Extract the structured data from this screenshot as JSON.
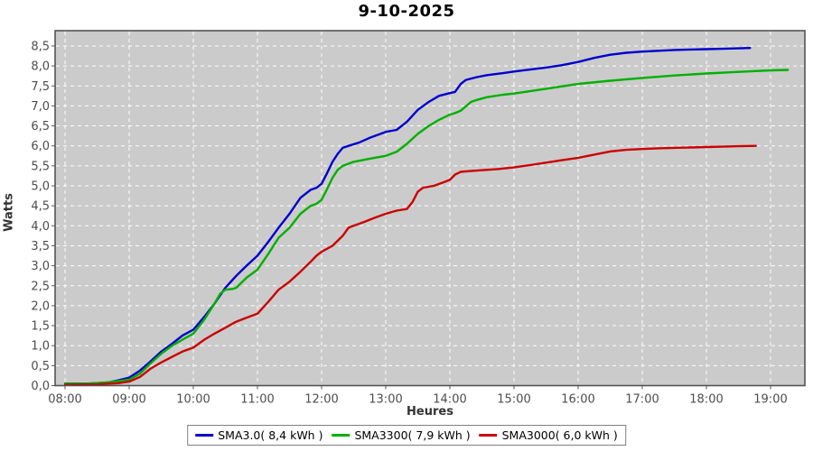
{
  "title": "9-10-2025",
  "axes": {
    "y_label": "Watts",
    "x_label": "Heures",
    "y_tick_values": [
      0,
      0.5,
      1,
      1.5,
      2,
      2.5,
      3,
      3.5,
      4,
      4.5,
      5,
      5.5,
      6,
      6.5,
      7,
      7.5,
      8,
      8.5
    ],
    "y_tick_labels": [
      "0,0",
      "0,5",
      "1,0",
      "1,5",
      "2,0",
      "2,5",
      "3,0",
      "3,5",
      "4,0",
      "4,5",
      "5,0",
      "5,5",
      "6,0",
      "6,5",
      "7,0",
      "7,5",
      "8,0",
      "8,5"
    ],
    "x_tick_values": [
      8,
      9,
      10,
      11,
      12,
      13,
      14,
      15,
      16,
      17,
      18,
      19
    ],
    "x_tick_labels": [
      "08:00",
      "09:00",
      "10:00",
      "11:00",
      "12:00",
      "13:00",
      "14:00",
      "15:00",
      "16:00",
      "17:00",
      "18:00",
      "19:00"
    ]
  },
  "legend": {
    "items": [
      {
        "label": "SMA3.0( 8,4 kWh )",
        "color": "#0000cc"
      },
      {
        "label": "SMA3300( 7,9 kWh )",
        "color": "#00b000"
      },
      {
        "label": "SMA3000( 6,0 kWh )",
        "color": "#cc0000"
      }
    ]
  },
  "chart_data": {
    "type": "line",
    "title": "9-10-2025",
    "xlabel": "Heures",
    "ylabel": "Watts",
    "x_unit": "hour of day (decimal)",
    "xlim": [
      7.85,
      19.55
    ],
    "ylim": [
      0,
      8.9
    ],
    "grid": true,
    "plot_background": "#cbcbcb",
    "grid_color": "#ffffff",
    "legend_position": "bottom-center",
    "series": [
      {
        "name": "SMA3.0( 8,4 kWh )",
        "total_kwh": "8,4",
        "color": "#0000cc",
        "points": [
          [
            8.0,
            0.05
          ],
          [
            8.17,
            0.05
          ],
          [
            8.33,
            0.05
          ],
          [
            8.5,
            0.06
          ],
          [
            8.67,
            0.08
          ],
          [
            8.83,
            0.13
          ],
          [
            9.0,
            0.2
          ],
          [
            9.17,
            0.38
          ],
          [
            9.33,
            0.6
          ],
          [
            9.5,
            0.85
          ],
          [
            9.67,
            1.05
          ],
          [
            9.83,
            1.25
          ],
          [
            10.0,
            1.4
          ],
          [
            10.17,
            1.72
          ],
          [
            10.33,
            2.05
          ],
          [
            10.5,
            2.45
          ],
          [
            10.67,
            2.75
          ],
          [
            10.83,
            3.0
          ],
          [
            11.0,
            3.25
          ],
          [
            11.17,
            3.6
          ],
          [
            11.33,
            3.95
          ],
          [
            11.5,
            4.3
          ],
          [
            11.67,
            4.7
          ],
          [
            11.83,
            4.9
          ],
          [
            11.92,
            4.95
          ],
          [
            12.0,
            5.05
          ],
          [
            12.08,
            5.3
          ],
          [
            12.17,
            5.6
          ],
          [
            12.25,
            5.8
          ],
          [
            12.33,
            5.95
          ],
          [
            12.42,
            6.0
          ],
          [
            12.58,
            6.08
          ],
          [
            12.75,
            6.2
          ],
          [
            12.92,
            6.3
          ],
          [
            13.0,
            6.35
          ],
          [
            13.17,
            6.4
          ],
          [
            13.33,
            6.6
          ],
          [
            13.5,
            6.9
          ],
          [
            13.67,
            7.1
          ],
          [
            13.83,
            7.25
          ],
          [
            14.0,
            7.32
          ],
          [
            14.08,
            7.35
          ],
          [
            14.17,
            7.55
          ],
          [
            14.25,
            7.65
          ],
          [
            14.42,
            7.72
          ],
          [
            14.58,
            7.77
          ],
          [
            14.83,
            7.82
          ],
          [
            15.0,
            7.86
          ],
          [
            15.25,
            7.91
          ],
          [
            15.5,
            7.96
          ],
          [
            15.75,
            8.02
          ],
          [
            16.0,
            8.1
          ],
          [
            16.25,
            8.2
          ],
          [
            16.5,
            8.28
          ],
          [
            16.75,
            8.33
          ],
          [
            17.0,
            8.36
          ],
          [
            17.25,
            8.38
          ],
          [
            17.5,
            8.4
          ],
          [
            17.75,
            8.41
          ],
          [
            18.0,
            8.42
          ],
          [
            18.25,
            8.43
          ],
          [
            18.5,
            8.44
          ],
          [
            18.68,
            8.45
          ]
        ]
      },
      {
        "name": "SMA3300( 7,9 kWh )",
        "total_kwh": "7,9",
        "color": "#00b000",
        "points": [
          [
            8.0,
            0.05
          ],
          [
            8.33,
            0.05
          ],
          [
            8.67,
            0.08
          ],
          [
            9.0,
            0.15
          ],
          [
            9.17,
            0.3
          ],
          [
            9.33,
            0.55
          ],
          [
            9.5,
            0.8
          ],
          [
            9.67,
            1.0
          ],
          [
            9.83,
            1.15
          ],
          [
            10.0,
            1.3
          ],
          [
            10.17,
            1.65
          ],
          [
            10.33,
            2.05
          ],
          [
            10.42,
            2.3
          ],
          [
            10.5,
            2.4
          ],
          [
            10.62,
            2.42
          ],
          [
            10.67,
            2.45
          ],
          [
            10.83,
            2.7
          ],
          [
            11.0,
            2.9
          ],
          [
            11.17,
            3.3
          ],
          [
            11.33,
            3.7
          ],
          [
            11.5,
            3.95
          ],
          [
            11.67,
            4.3
          ],
          [
            11.83,
            4.5
          ],
          [
            11.92,
            4.55
          ],
          [
            12.0,
            4.65
          ],
          [
            12.08,
            4.9
          ],
          [
            12.17,
            5.2
          ],
          [
            12.25,
            5.4
          ],
          [
            12.33,
            5.5
          ],
          [
            12.5,
            5.6
          ],
          [
            12.75,
            5.68
          ],
          [
            13.0,
            5.75
          ],
          [
            13.17,
            5.85
          ],
          [
            13.33,
            6.05
          ],
          [
            13.5,
            6.3
          ],
          [
            13.67,
            6.5
          ],
          [
            13.83,
            6.65
          ],
          [
            13.92,
            6.72
          ],
          [
            14.0,
            6.78
          ],
          [
            14.08,
            6.82
          ],
          [
            14.17,
            6.88
          ],
          [
            14.33,
            7.1
          ],
          [
            14.42,
            7.15
          ],
          [
            14.58,
            7.22
          ],
          [
            14.83,
            7.28
          ],
          [
            15.0,
            7.31
          ],
          [
            15.5,
            7.43
          ],
          [
            16.0,
            7.55
          ],
          [
            16.5,
            7.63
          ],
          [
            17.0,
            7.7
          ],
          [
            17.5,
            7.76
          ],
          [
            18.0,
            7.81
          ],
          [
            18.5,
            7.85
          ],
          [
            19.0,
            7.89
          ],
          [
            19.27,
            7.9
          ]
        ]
      },
      {
        "name": "SMA3000( 6,0 kWh )",
        "total_kwh": "6,0",
        "color": "#cc0000",
        "points": [
          [
            8.0,
            0.02
          ],
          [
            8.5,
            0.03
          ],
          [
            8.83,
            0.06
          ],
          [
            9.0,
            0.1
          ],
          [
            9.17,
            0.22
          ],
          [
            9.33,
            0.42
          ],
          [
            9.5,
            0.58
          ],
          [
            9.67,
            0.72
          ],
          [
            9.83,
            0.85
          ],
          [
            10.0,
            0.95
          ],
          [
            10.17,
            1.15
          ],
          [
            10.33,
            1.3
          ],
          [
            10.5,
            1.45
          ],
          [
            10.67,
            1.6
          ],
          [
            10.83,
            1.7
          ],
          [
            11.0,
            1.8
          ],
          [
            11.17,
            2.1
          ],
          [
            11.33,
            2.4
          ],
          [
            11.5,
            2.6
          ],
          [
            11.67,
            2.85
          ],
          [
            11.83,
            3.1
          ],
          [
            11.92,
            3.25
          ],
          [
            12.0,
            3.35
          ],
          [
            12.17,
            3.5
          ],
          [
            12.33,
            3.75
          ],
          [
            12.42,
            3.95
          ],
          [
            12.5,
            4.0
          ],
          [
            12.67,
            4.1
          ],
          [
            12.83,
            4.2
          ],
          [
            13.0,
            4.3
          ],
          [
            13.17,
            4.38
          ],
          [
            13.33,
            4.42
          ],
          [
            13.42,
            4.6
          ],
          [
            13.5,
            4.85
          ],
          [
            13.58,
            4.95
          ],
          [
            13.75,
            5.0
          ],
          [
            13.92,
            5.1
          ],
          [
            14.0,
            5.15
          ],
          [
            14.08,
            5.28
          ],
          [
            14.17,
            5.35
          ],
          [
            14.33,
            5.37
          ],
          [
            14.5,
            5.39
          ],
          [
            14.75,
            5.42
          ],
          [
            15.0,
            5.46
          ],
          [
            15.25,
            5.52
          ],
          [
            15.5,
            5.58
          ],
          [
            15.75,
            5.64
          ],
          [
            16.0,
            5.7
          ],
          [
            16.25,
            5.78
          ],
          [
            16.5,
            5.86
          ],
          [
            16.75,
            5.9
          ],
          [
            17.0,
            5.92
          ],
          [
            17.25,
            5.94
          ],
          [
            17.5,
            5.95
          ],
          [
            17.75,
            5.96
          ],
          [
            18.0,
            5.97
          ],
          [
            18.25,
            5.98
          ],
          [
            18.5,
            5.99
          ],
          [
            18.77,
            6.0
          ]
        ]
      }
    ]
  },
  "colors": {
    "plot_background": "#cbcbcb",
    "plot_border": "#545454",
    "grid": "#ffffff",
    "tick_label": "#4d4d4d",
    "series_blue": "#0000cc",
    "series_green": "#00b000",
    "series_red": "#cc0000"
  }
}
